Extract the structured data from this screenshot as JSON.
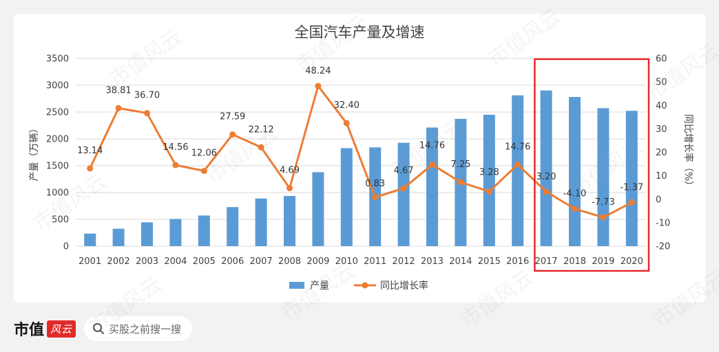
{
  "watermark_text": "市值风云",
  "footer": {
    "brand_text": "市值",
    "brand_seal_text": "风云",
    "search_placeholder": "买股之前搜一搜"
  },
  "colors": {
    "bar": "#5b9bd5",
    "line": "#ed7d31",
    "highlight_box": "#e8262d",
    "grid": "#d9d9d9",
    "text": "#404040"
  },
  "chart_data": {
    "type": "bar+line",
    "title": "全国汽车产量及增速",
    "categories": [
      "2001",
      "2002",
      "2003",
      "2004",
      "2005",
      "2006",
      "2007",
      "2008",
      "2009",
      "2010",
      "2011",
      "2012",
      "2013",
      "2014",
      "2015",
      "2016",
      "2017",
      "2018",
      "2019",
      "2020"
    ],
    "series": [
      {
        "name": "产量",
        "type": "bar",
        "axis": "left",
        "values": [
          234,
          325,
          444,
          507,
          571,
          728,
          888,
          935,
          1379,
          1827,
          1842,
          1927,
          2212,
          2373,
          2450,
          2812,
          2902,
          2781,
          2572,
          2523
        ]
      },
      {
        "name": "同比增长率",
        "type": "line",
        "axis": "right",
        "values": [
          13.14,
          38.81,
          36.7,
          14.56,
          12.06,
          27.59,
          22.12,
          4.69,
          48.24,
          32.4,
          0.83,
          4.67,
          14.76,
          7.25,
          3.28,
          14.76,
          3.2,
          -4.1,
          -7.73,
          -1.37
        ],
        "labels": [
          "13.14",
          "38.81",
          "36.70",
          "14.56",
          "12.06",
          "27.59",
          "22.12",
          "4.69",
          "48.24",
          "32.40",
          "0.83",
          "4.67",
          "14.76",
          "7.25",
          "3.28",
          "14.76",
          "3.20",
          "-4.10",
          "-7.73",
          "-1.37"
        ]
      }
    ],
    "y_left": {
      "label": "产量（万辆）",
      "lim": [
        0,
        3500
      ],
      "ticks": [
        "0",
        "500",
        "1000",
        "1500",
        "2000",
        "2500",
        "3000",
        "3500"
      ]
    },
    "y_right": {
      "label": "同比增长率（%）",
      "lim": [
        -20,
        60
      ],
      "ticks": [
        "-20",
        "-10",
        "0",
        "10",
        "20",
        "30",
        "40",
        "50",
        "60"
      ]
    },
    "grid": true,
    "legend_position": "bottom",
    "highlight_categories": [
      "2017",
      "2018",
      "2019",
      "2020"
    ]
  }
}
